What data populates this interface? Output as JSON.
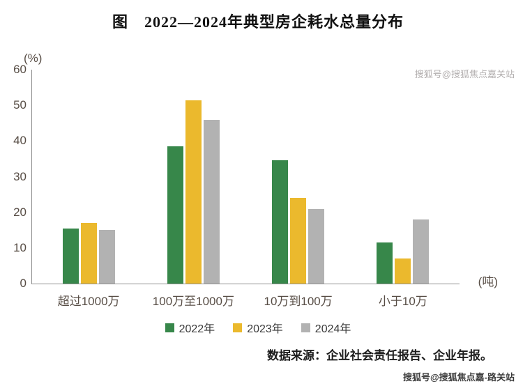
{
  "title": "图　2022—2024年典型房企耗水总量分布",
  "watermarks": {
    "top": "搜狐号@搜狐焦点嘉关站",
    "bottom": "搜狐号@搜狐焦点嘉-路关站"
  },
  "source": "数据来源：企业社会责任报告、企业年报。",
  "chart_data": {
    "type": "bar",
    "title": "图　2022—2024年典型房企耗水总量分布",
    "unit_y": "(%)",
    "unit_x": "(吨)",
    "categories": [
      "超过1000万",
      "100万至1000万",
      "10万到100万",
      "小于10万"
    ],
    "series": [
      {
        "name": "2022年",
        "color": "#37874A",
        "values": [
          15.5,
          38.5,
          34.5,
          11.5
        ]
      },
      {
        "name": "2023年",
        "color": "#EBB92D",
        "values": [
          17,
          51.5,
          24,
          7
        ]
      },
      {
        "name": "2024年",
        "color": "#B2B2B2",
        "values": [
          15,
          46,
          21,
          18
        ]
      }
    ],
    "ylim": [
      0,
      60
    ],
    "yticks": [
      0,
      10,
      20,
      30,
      40,
      50,
      60
    ],
    "grid": false,
    "legend_position": "bottom"
  }
}
